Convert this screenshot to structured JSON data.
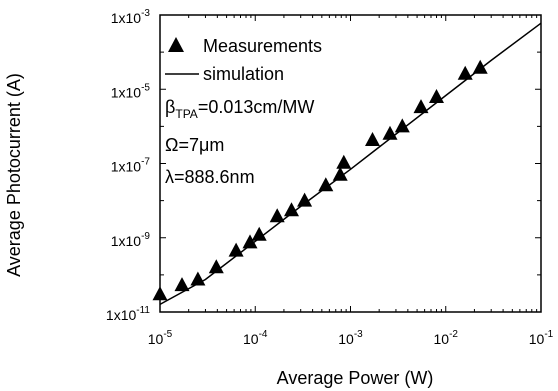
{
  "chart_data": {
    "type": "scatter",
    "xlabel": "Average Power (W)",
    "ylabel": "Average Photocurrent (A)",
    "x_scale": "log",
    "y_scale": "log",
    "xlim": [
      1e-05,
      0.1
    ],
    "ylim": [
      1e-11,
      0.001
    ],
    "x_ticks": [
      {
        "base": "10",
        "exp": "-5"
      },
      {
        "base": "10",
        "exp": "-4"
      },
      {
        "base": "10",
        "exp": "-3"
      },
      {
        "base": "10",
        "exp": "-2"
      },
      {
        "base": "10",
        "exp": "-1"
      }
    ],
    "y_ticks": [
      {
        "base": "1x10",
        "exp": "-11"
      },
      {
        "base": "1x10",
        "exp": "-9"
      },
      {
        "base": "1x10",
        "exp": "-7"
      },
      {
        "base": "1x10",
        "exp": "-5"
      },
      {
        "base": "1x10",
        "exp": "-3"
      }
    ],
    "legend": {
      "placement": "top-left",
      "entries": [
        "Measurements",
        "simulation"
      ]
    },
    "annotations": {
      "beta_symbol": "β",
      "beta_sub": "TPA",
      "beta_value": "=0.013cm/MW",
      "omega": "Ω=7μm",
      "lambda": "λ=888.6nm"
    },
    "grid": false,
    "series": [
      {
        "name": "Measurements",
        "marker": "triangle",
        "x": [
          1e-05,
          1.7e-05,
          2.5e-05,
          3.9e-05,
          6.3e-05,
          8.8e-05,
          0.00011,
          0.00017,
          0.00024,
          0.00033,
          0.00055,
          0.00078,
          0.00085,
          0.0017,
          0.0026,
          0.0035,
          0.0055,
          0.008,
          0.016,
          0.023
        ],
        "y": [
          3e-11,
          5.3e-11,
          7.5e-11,
          1.6e-10,
          4.5e-10,
          7.5e-10,
          1.2e-09,
          3.8e-09,
          5.5e-09,
          1e-08,
          2.6e-08,
          5e-08,
          1.05e-07,
          4.3e-07,
          6.3e-07,
          1e-06,
          3.3e-06,
          6.2e-06,
          2.6e-05,
          3.8e-05
        ]
      },
      {
        "name": "simulation",
        "type": "line",
        "x": [
          1e-05,
          3e-05,
          0.0001,
          0.0003,
          0.001,
          0.003,
          0.01,
          0.03,
          0.1
        ],
        "y": [
          1.6e-11,
          7.5e-11,
          8e-10,
          7e-09,
          7e-08,
          6.2e-07,
          6.8e-06,
          6e-05,
          0.0006
        ]
      }
    ]
  }
}
